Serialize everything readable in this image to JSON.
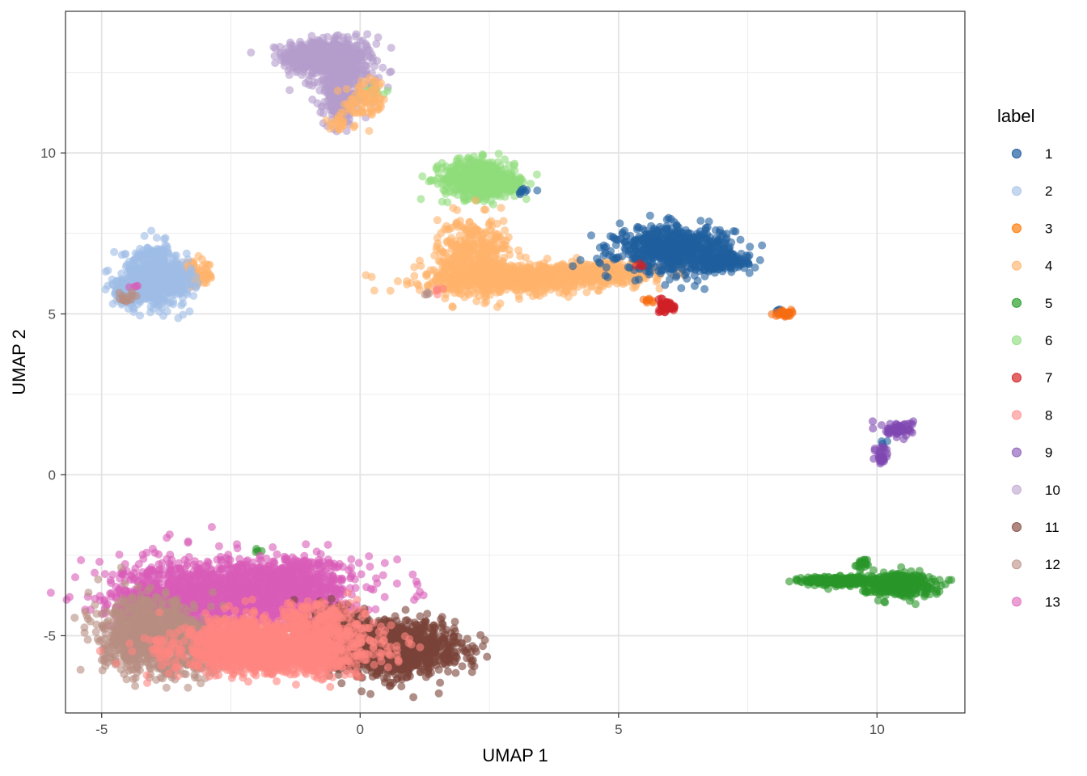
{
  "chart_data": {
    "type": "scatter",
    "title": "",
    "xlabel": "UMAP 1",
    "ylabel": "UMAP 2",
    "xlim": [
      -5.7,
      11.7
    ],
    "ylim": [
      -7.4,
      14.4
    ],
    "x_ticks": [
      {
        "value": -5,
        "label": "-5"
      },
      {
        "value": 0,
        "label": "0"
      },
      {
        "value": 5,
        "label": "5"
      },
      {
        "value": 10,
        "label": "10"
      }
    ],
    "y_ticks": [
      {
        "value": -5,
        "label": "-5"
      },
      {
        "value": 0,
        "label": "0"
      },
      {
        "value": 5,
        "label": "5"
      },
      {
        "value": 10,
        "label": "10"
      }
    ],
    "grid": true,
    "legend": {
      "title": "label",
      "placement": "right",
      "items": [
        {
          "label": "1",
          "color": "#1f5f9f"
        },
        {
          "label": "2",
          "color": "#aec7e8"
        },
        {
          "label": "3",
          "color": "#ff7f0e"
        },
        {
          "label": "4",
          "color": "#ffbb78"
        },
        {
          "label": "5",
          "color": "#2ca02c"
        },
        {
          "label": "6",
          "color": "#98df8a"
        },
        {
          "label": "7",
          "color": "#d62728"
        },
        {
          "label": "8",
          "color": "#ff9896"
        },
        {
          "label": "9",
          "color": "#9467bd"
        },
        {
          "label": "10",
          "color": "#c5b0d5"
        },
        {
          "label": "11",
          "color": "#8c564b"
        },
        {
          "label": "12",
          "color": "#c49c94"
        },
        {
          "label": "13",
          "color": "#e377c2"
        }
      ]
    },
    "series": [
      {
        "name": "10",
        "color": "#b49ccc",
        "clusters": [
          {
            "cx": -0.9,
            "cy": 13.0,
            "sx": 0.3,
            "sy": 0.25,
            "n": 400
          },
          {
            "cx": -0.3,
            "cy": 12.6,
            "sx": 0.3,
            "sy": 0.5,
            "n": 350
          },
          {
            "cx": -0.4,
            "cy": 11.6,
            "sx": 0.15,
            "sy": 0.35,
            "n": 150
          }
        ]
      },
      {
        "name": "6",
        "color": "#8fdc7c",
        "clusters": [
          {
            "cx": 2.3,
            "cy": 9.2,
            "sx": 0.35,
            "sy": 0.3,
            "n": 500
          },
          {
            "cx": 2.8,
            "cy": 9.0,
            "sx": 0.2,
            "sy": 0.15,
            "n": 100
          },
          {
            "cx": 0.3,
            "cy": 11.9,
            "sx": 0.1,
            "sy": 0.1,
            "n": 15
          }
        ]
      },
      {
        "name": "4",
        "color": "#ffb36b",
        "clusters": [
          {
            "cx": 2.2,
            "cy": 6.8,
            "sx": 0.35,
            "sy": 0.6,
            "n": 400
          },
          {
            "cx": 3.0,
            "cy": 6.1,
            "sx": 0.9,
            "sy": 0.22,
            "n": 700
          },
          {
            "cx": 4.8,
            "cy": 6.3,
            "sx": 0.6,
            "sy": 0.15,
            "n": 300
          },
          {
            "cx": -3.2,
            "cy": 6.2,
            "sx": 0.2,
            "sy": 0.2,
            "n": 80
          },
          {
            "cx": 0.1,
            "cy": 11.6,
            "sx": 0.2,
            "sy": 0.35,
            "n": 80
          },
          {
            "cx": -0.4,
            "cy": 10.9,
            "sx": 0.1,
            "sy": 0.1,
            "n": 20
          }
        ]
      },
      {
        "name": "1",
        "color": "#1f5f9f",
        "clusters": [
          {
            "cx": 6.1,
            "cy": 7.0,
            "sx": 0.55,
            "sy": 0.35,
            "n": 700
          },
          {
            "cx": 7.0,
            "cy": 6.6,
            "sx": 0.25,
            "sy": 0.12,
            "n": 150
          },
          {
            "cx": 3.1,
            "cy": 8.8,
            "sx": 0.1,
            "sy": 0.1,
            "n": 8
          },
          {
            "cx": 10.1,
            "cy": 1.0,
            "sx": 0.05,
            "sy": 0.05,
            "n": 4
          },
          {
            "cx": 8.1,
            "cy": 5.1,
            "sx": 0.04,
            "sy": 0.03,
            "n": 4
          }
        ]
      },
      {
        "name": "2",
        "color": "#9fbde6",
        "clusters": [
          {
            "cx": -4.0,
            "cy": 6.2,
            "sx": 0.3,
            "sy": 0.45,
            "n": 500
          },
          {
            "cx": -4.4,
            "cy": 5.7,
            "sx": 0.2,
            "sy": 0.2,
            "n": 150
          },
          {
            "cx": -3.6,
            "cy": 6.0,
            "sx": 0.2,
            "sy": 0.25,
            "n": 120
          }
        ]
      },
      {
        "name": "3",
        "color": "#f66d12",
        "clusters": [
          {
            "cx": 8.2,
            "cy": 5.0,
            "sx": 0.08,
            "sy": 0.05,
            "n": 40
          },
          {
            "cx": 5.6,
            "cy": 5.4,
            "sx": 0.08,
            "sy": 0.05,
            "n": 8
          }
        ]
      },
      {
        "name": "7",
        "color": "#d11f26",
        "clusters": [
          {
            "cx": 5.95,
            "cy": 5.25,
            "sx": 0.07,
            "sy": 0.1,
            "n": 60
          },
          {
            "cx": 5.4,
            "cy": 6.5,
            "sx": 0.05,
            "sy": 0.05,
            "n": 4
          }
        ]
      },
      {
        "name": "9",
        "color": "#7f48b1",
        "clusters": [
          {
            "cx": 10.4,
            "cy": 1.4,
            "sx": 0.15,
            "sy": 0.12,
            "n": 60
          },
          {
            "cx": 10.1,
            "cy": 0.6,
            "sx": 0.06,
            "sy": 0.2,
            "n": 30
          }
        ]
      },
      {
        "name": "5",
        "color": "#2a962a",
        "clusters": [
          {
            "cx": 9.3,
            "cy": -3.3,
            "sx": 0.35,
            "sy": 0.07,
            "n": 250
          },
          {
            "cx": 10.4,
            "cy": -3.4,
            "sx": 0.35,
            "sy": 0.18,
            "n": 350
          },
          {
            "cx": 9.7,
            "cy": -2.75,
            "sx": 0.06,
            "sy": 0.08,
            "n": 20
          },
          {
            "cx": -2.0,
            "cy": -2.35,
            "sx": 0.05,
            "sy": 0.05,
            "n": 4
          }
        ]
      },
      {
        "name": "13",
        "color": "#d95bb8",
        "clusters": [
          {
            "cx": -2.4,
            "cy": -3.7,
            "sx": 1.1,
            "sy": 0.55,
            "n": 1500
          },
          {
            "cx": -3.8,
            "cy": -4.0,
            "sx": 0.5,
            "sy": 0.4,
            "n": 350
          },
          {
            "cx": -1.2,
            "cy": -3.4,
            "sx": 0.5,
            "sy": 0.4,
            "n": 300
          },
          {
            "cx": -4.4,
            "cy": 5.8,
            "sx": 0.05,
            "sy": 0.05,
            "n": 4
          }
        ]
      },
      {
        "name": "12",
        "color": "#b88d82",
        "clusters": [
          {
            "cx": -4.1,
            "cy": -5.0,
            "sx": 0.45,
            "sy": 0.55,
            "n": 900
          },
          {
            "cx": -3.2,
            "cy": -5.4,
            "sx": 0.4,
            "sy": 0.4,
            "n": 300
          },
          {
            "cx": -4.5,
            "cy": 5.5,
            "sx": 0.1,
            "sy": 0.1,
            "n": 15
          },
          {
            "cx": 1.3,
            "cy": 5.6,
            "sx": 0.05,
            "sy": 0.05,
            "n": 4
          }
        ]
      },
      {
        "name": "11",
        "color": "#7a4338",
        "clusters": [
          {
            "cx": 0.8,
            "cy": -5.4,
            "sx": 0.55,
            "sy": 0.38,
            "n": 1100
          },
          {
            "cx": -0.2,
            "cy": -5.2,
            "sx": 0.5,
            "sy": 0.45,
            "n": 300
          },
          {
            "cx": -0.5,
            "cy": -4.6,
            "sx": 0.4,
            "sy": 0.25,
            "n": 100
          }
        ]
      },
      {
        "name": "8",
        "color": "#ff8580",
        "clusters": [
          {
            "cx": -1.7,
            "cy": -5.5,
            "sx": 0.95,
            "sy": 0.35,
            "n": 1200
          },
          {
            "cx": -0.8,
            "cy": -4.7,
            "sx": 0.5,
            "sy": 0.4,
            "n": 300
          },
          {
            "cx": -2.5,
            "cy": -4.9,
            "sx": 0.4,
            "sy": 0.3,
            "n": 200
          },
          {
            "cx": 1.5,
            "cy": 5.7,
            "sx": 0.05,
            "sy": 0.05,
            "n": 5
          }
        ]
      }
    ]
  }
}
